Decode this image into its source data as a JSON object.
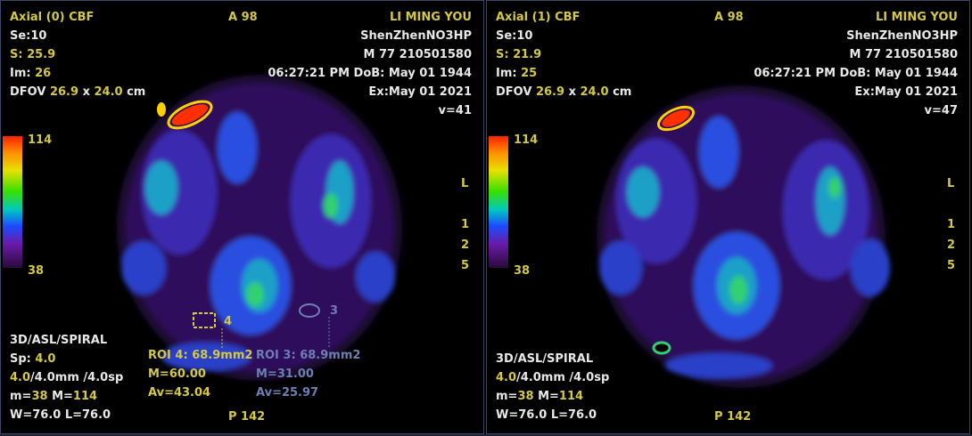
{
  "viewports": [
    {
      "title": "Axial (0) CBF",
      "series_label": "Se:",
      "series": "10",
      "slice_label": "S: ",
      "slice": "25.9",
      "image_label": "Im: ",
      "image": "26",
      "dfov_label": "DFOV ",
      "dfov_w": "26.9",
      "dfov_x": " x ",
      "dfov_h": "24.0",
      "dfov_unit": " cm",
      "orient_top": "A 98",
      "orient_bottom": "P 142",
      "patient_name": "LI MING YOU",
      "hospital": "ShenZhenNO3HP",
      "patient_id": "M 77 210501580",
      "time_dob": "06:27:21 PM  DoB: May 01 1944",
      "exam_date": "Ex:May 01 2021",
      "view_num": "v=41",
      "scale_max": "114",
      "scale_min": "38",
      "sequence": "3D/ASL/SPIRAL",
      "sp_label": "Sp: ",
      "sp": "4.0",
      "thick_a": "4.0",
      "thick_rest": "/4.0mm /4.0sp",
      "m_label": "m=",
      "m": "38",
      "M_label": " M=",
      "M": "114",
      "wl": "W=76.0 L=76.0"
    },
    {
      "title": "Axial (1) CBF",
      "series_label": "Se:",
      "series": "10",
      "slice_label": "S: ",
      "slice": "21.9",
      "image_label": "Im: ",
      "image": "25",
      "dfov_label": "DFOV ",
      "dfov_w": "26.9",
      "dfov_x": " x ",
      "dfov_h": "24.0",
      "dfov_unit": " cm",
      "orient_top": "A 98",
      "orient_bottom": "P 142",
      "patient_name": "LI MING YOU",
      "hospital": "ShenZhenNO3HP",
      "patient_id": "M 77 210501580",
      "time_dob": "06:27:21 PM  DoB: May 01 1944",
      "exam_date": "Ex:May 01 2021",
      "view_num": "v=47",
      "scale_max": "114",
      "scale_min": "38",
      "sequence": "3D/ASL/SPIRAL",
      "thick_a": "4.0",
      "thick_rest": "/4.0mm /4.0sp",
      "m_label": "m=",
      "m": "38",
      "M_label": " M=",
      "M": "114",
      "wl": "W=76.0 L=76.0"
    }
  ],
  "side_labels": [
    "L",
    "1",
    "2",
    "5"
  ],
  "rois": [
    {
      "num": "4",
      "area": "ROI 4: 68.9mm2",
      "mean": "M=60.00",
      "avg": "Av=43.04",
      "color": "#d4c845"
    },
    {
      "num": "3",
      "area": "ROI 3: 68.9mm2",
      "mean": "M=31.00",
      "avg": "Av=25.97",
      "color": "#6e7fb3"
    }
  ]
}
